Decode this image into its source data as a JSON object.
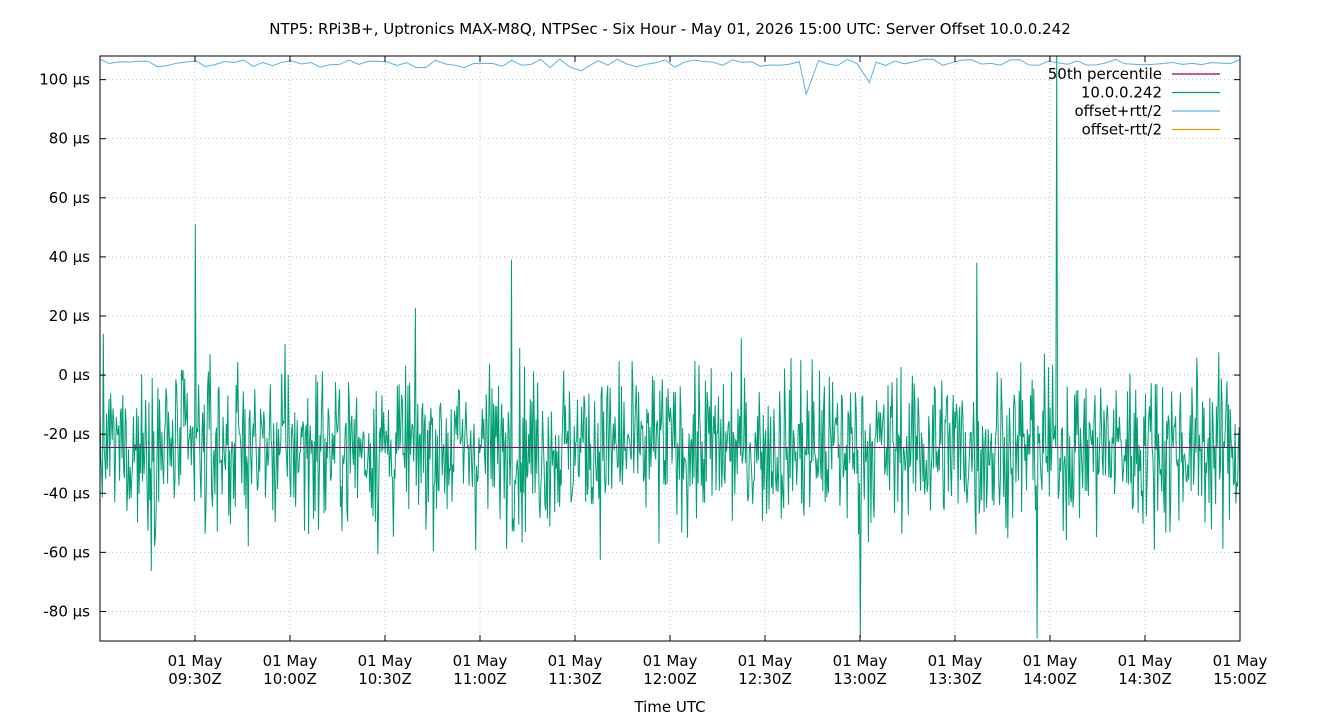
{
  "chart_data": {
    "type": "line",
    "title": "NTP5: RPi3B+, Uptronics MAX-M8Q, NTPSec - Six Hour - May 01, 2026 15:00 UTC: Server Offset 10.0.0.242",
    "xlabel": "Time UTC",
    "ylabel": "",
    "y_unit": "µs",
    "grid": true,
    "legend_position": "top-right",
    "xlim": [
      "2026-05-01T09:00Z",
      "2026-05-01T15:00Z"
    ],
    "ylim": [
      -90,
      108
    ],
    "y_ticks": [
      {
        "value": 100,
        "label": "100 µs"
      },
      {
        "value": 80,
        "label": "80 µs"
      },
      {
        "value": 60,
        "label": "60 µs"
      },
      {
        "value": 40,
        "label": "40 µs"
      },
      {
        "value": 20,
        "label": "20 µs"
      },
      {
        "value": 0,
        "label": "0 µs"
      },
      {
        "value": -20,
        "label": "-20 µs"
      },
      {
        "value": -40,
        "label": "-40 µs"
      },
      {
        "value": -60,
        "label": "-60 µs"
      },
      {
        "value": -80,
        "label": "-80 µs"
      }
    ],
    "x_ticks": [
      {
        "value": "2026-05-01T09:30Z",
        "line1": "01 May",
        "line2": "09:30Z"
      },
      {
        "value": "2026-05-01T10:00Z",
        "line1": "01 May",
        "line2": "10:00Z"
      },
      {
        "value": "2026-05-01T10:30Z",
        "line1": "01 May",
        "line2": "10:30Z"
      },
      {
        "value": "2026-05-01T11:00Z",
        "line1": "01 May",
        "line2": "11:00Z"
      },
      {
        "value": "2026-05-01T11:30Z",
        "line1": "01 May",
        "line2": "11:30Z"
      },
      {
        "value": "2026-05-01T12:00Z",
        "line1": "01 May",
        "line2": "12:00Z"
      },
      {
        "value": "2026-05-01T12:30Z",
        "line1": "01 May",
        "line2": "12:30Z"
      },
      {
        "value": "2026-05-01T13:00Z",
        "line1": "01 May",
        "line2": "13:00Z"
      },
      {
        "value": "2026-05-01T13:30Z",
        "line1": "01 May",
        "line2": "13:30Z"
      },
      {
        "value": "2026-05-01T14:00Z",
        "line1": "01 May",
        "line2": "14:00Z"
      },
      {
        "value": "2026-05-01T14:30Z",
        "line1": "01 May",
        "line2": "14:30Z"
      },
      {
        "value": "2026-05-01T15:00Z",
        "line1": "01 May",
        "line2": "15:00Z"
      }
    ],
    "series": [
      {
        "name": "50th percentile",
        "color": "#94006b",
        "style": "hline",
        "value": -24.5
      },
      {
        "name": "10.0.0.242",
        "color": "#009e73",
        "style": "line",
        "description_of_values": "noisy offset samples mostly between -75 and +35 µs, centered near -24 µs",
        "range": [
          -89,
          110
        ],
        "notable_points": [
          {
            "x": "2026-05-01T09:30Z",
            "y": 51
          },
          {
            "x": "2026-05-01T11:10Z",
            "y": 39
          },
          {
            "x": "2026-05-01T13:37Z",
            "y": 38
          },
          {
            "x": "2026-05-01T14:02Z",
            "y": 110
          },
          {
            "x": "2026-05-01T13:00Z",
            "y": -89
          },
          {
            "x": "2026-05-01T13:56Z",
            "y": -89
          }
        ]
      },
      {
        "name": "offset+rtt/2",
        "color": "#56b4e9",
        "style": "line",
        "range_visible": [
          95,
          108
        ],
        "notable_points": [
          {
            "x": "2026-05-01T12:43Z",
            "y": 95
          },
          {
            "x": "2026-05-01T13:03Z",
            "y": 99
          },
          {
            "x": "2026-05-01T11:32Z",
            "y": 103
          }
        ]
      },
      {
        "name": "offset-rtt/2",
        "color": "#e69f00",
        "style": "line",
        "range_visible": []
      }
    ]
  }
}
